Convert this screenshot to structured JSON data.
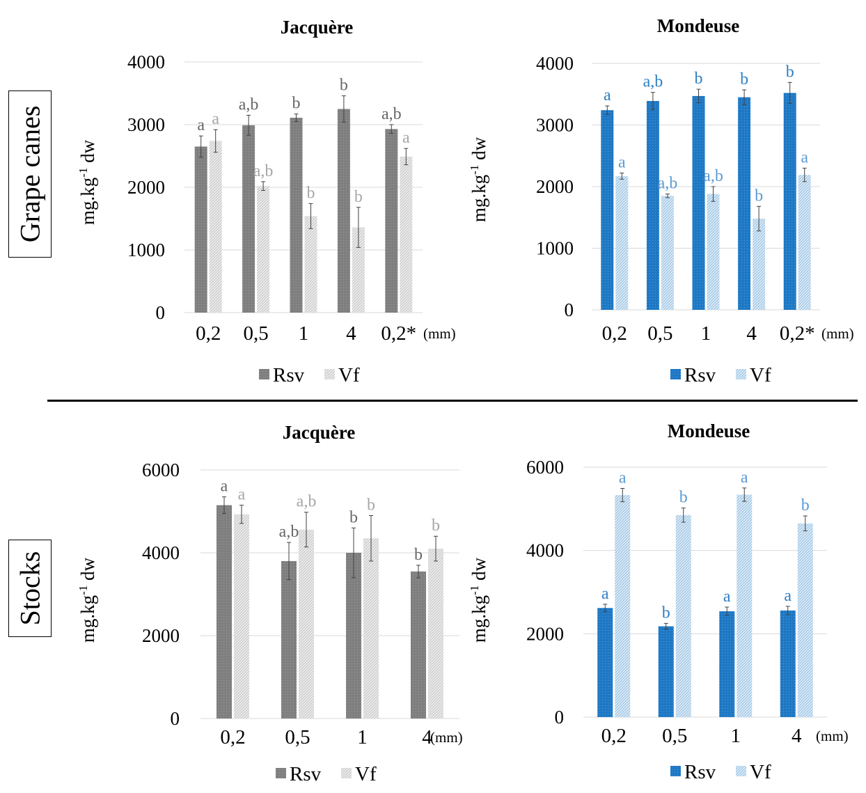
{
  "row_labels": {
    "top": "Grape canes",
    "bottom": "Stocks"
  },
  "colors": {
    "jacq_rsv": "#7f7f7f",
    "jacq_vf": "#d0d0d0",
    "mond_rsv": "#1e78c4",
    "mond_vf": "#a9cce8",
    "jacq_label_rsv": "#666666",
    "jacq_label_vf": "#a6a6a6",
    "mond_label": "#2e7fc4",
    "mond_label_vf": "#5b9bd5"
  },
  "chart_data": [
    {
      "type": "bar",
      "title": "Jacquère",
      "ylabel": "mg.kg-1 dw",
      "unit_label": "(mm)",
      "categories": [
        "0,2",
        "0,5",
        "1",
        "4",
        "0,2*"
      ],
      "ylim": [
        0,
        4000
      ],
      "yticks": [
        "0",
        "1000",
        "2000",
        "3000",
        "4000"
      ],
      "series": [
        {
          "name": "Rsv",
          "values": [
            2650,
            2990,
            3110,
            3250,
            2930
          ],
          "errors": [
            170,
            160,
            60,
            210,
            70
          ],
          "letters": [
            "a",
            "a,b",
            "b",
            "b",
            "a,b"
          ]
        },
        {
          "name": "Vf",
          "values": [
            2740,
            2020,
            1540,
            1360,
            2490
          ],
          "errors": [
            180,
            70,
            200,
            320,
            130
          ],
          "letters": [
            "a",
            "a,b",
            "b",
            "b",
            "a"
          ]
        }
      ]
    },
    {
      "type": "bar",
      "title": "Mondeuse",
      "ylabel": "mg.kg-1 dw",
      "unit_label": "(mm)",
      "categories": [
        "0,2",
        "0,5",
        "1",
        "4",
        "0,2*"
      ],
      "ylim": [
        0,
        4000
      ],
      "yticks": [
        "0",
        "1000",
        "2000",
        "3000",
        "4000"
      ],
      "series": [
        {
          "name": "Rsv",
          "values": [
            3240,
            3390,
            3470,
            3450,
            3520
          ],
          "errors": [
            70,
            140,
            110,
            120,
            170
          ],
          "letters": [
            "a",
            "a,b",
            "b",
            "b",
            "b"
          ]
        },
        {
          "name": "Vf",
          "values": [
            2170,
            1850,
            1880,
            1480,
            2190
          ],
          "errors": [
            50,
            30,
            120,
            200,
            110
          ],
          "letters": [
            "a",
            "a,b",
            "a,b",
            "b",
            "a"
          ]
        }
      ]
    },
    {
      "type": "bar",
      "title": "Jacquère",
      "ylabel": "mg.kg-1 dw",
      "unit_label": "(mm)",
      "categories": [
        "0,2",
        "0,5",
        "1",
        "4"
      ],
      "ylim": [
        0,
        6000
      ],
      "yticks": [
        "0",
        "2000",
        "4000",
        "6000"
      ],
      "series": [
        {
          "name": "Rsv",
          "values": [
            5150,
            3800,
            4000,
            3550
          ],
          "errors": [
            200,
            450,
            600,
            150
          ],
          "letters": [
            "a",
            "a,b",
            "b",
            "b"
          ]
        },
        {
          "name": "Vf",
          "values": [
            4930,
            4560,
            4350,
            4100
          ],
          "errors": [
            220,
            420,
            550,
            300
          ],
          "letters": [
            "a",
            "a,b",
            "b",
            "b"
          ]
        }
      ]
    },
    {
      "type": "bar",
      "title": "Mondeuse",
      "ylabel": "mg.kg-1 dw",
      "unit_label": "(mm)",
      "categories": [
        "0,2",
        "0,5",
        "1",
        "4"
      ],
      "ylim": [
        0,
        6000
      ],
      "yticks": [
        "0",
        "2000",
        "4000",
        "6000"
      ],
      "series": [
        {
          "name": "Rsv",
          "values": [
            2620,
            2180,
            2540,
            2560
          ],
          "errors": [
            90,
            70,
            100,
            100
          ],
          "letters": [
            "a",
            "b",
            "a",
            "a"
          ]
        },
        {
          "name": "Vf",
          "values": [
            5330,
            4850,
            5340,
            4650
          ],
          "errors": [
            160,
            170,
            160,
            180
          ],
          "letters": [
            "a",
            "b",
            "a",
            "b"
          ]
        }
      ]
    }
  ]
}
